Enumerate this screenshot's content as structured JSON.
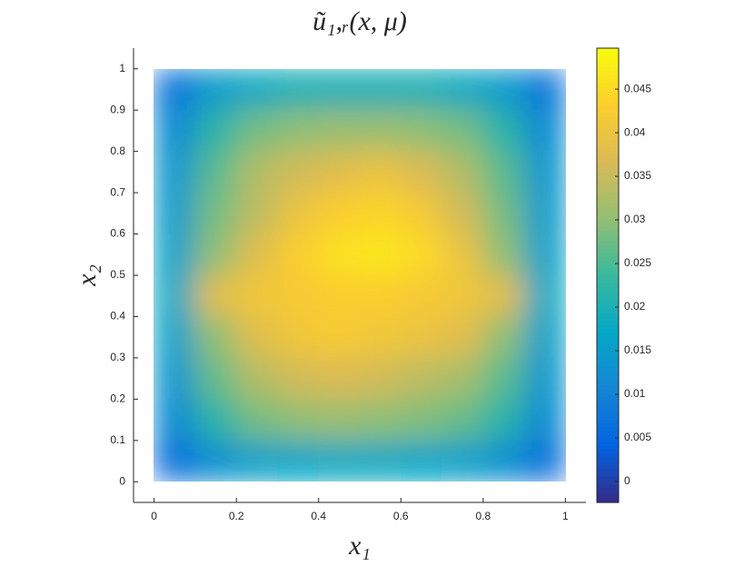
{
  "chart_data": {
    "type": "heatmap",
    "title": "ũ₁,ᵣ(x, μ)",
    "xlabel": "x₁",
    "ylabel": "x₂",
    "x": [
      0.05,
      0.15,
      0.25,
      0.35,
      0.45,
      0.55,
      0.65,
      0.75,
      0.85,
      0.95
    ],
    "y": [
      0.95,
      0.85,
      0.75,
      0.65,
      0.55,
      0.45,
      0.35,
      0.25,
      0.15,
      0.05
    ],
    "z": [
      [
        0.008,
        0.015,
        0.018,
        0.02,
        0.02,
        0.02,
        0.02,
        0.018,
        0.015,
        0.008
      ],
      [
        0.012,
        0.022,
        0.028,
        0.03,
        0.031,
        0.031,
        0.03,
        0.028,
        0.022,
        0.012
      ],
      [
        0.014,
        0.026,
        0.033,
        0.036,
        0.038,
        0.04,
        0.037,
        0.033,
        0.026,
        0.014
      ],
      [
        0.015,
        0.028,
        0.034,
        0.04,
        0.043,
        0.044,
        0.042,
        0.036,
        0.028,
        0.015
      ],
      [
        0.016,
        0.03,
        0.038,
        0.043,
        0.046,
        0.047,
        0.045,
        0.04,
        0.03,
        0.016
      ],
      [
        0.018,
        0.038,
        0.041,
        0.042,
        0.043,
        0.043,
        0.042,
        0.041,
        0.038,
        0.018
      ],
      [
        0.016,
        0.03,
        0.038,
        0.041,
        0.042,
        0.041,
        0.04,
        0.038,
        0.03,
        0.016
      ],
      [
        0.014,
        0.027,
        0.033,
        0.036,
        0.037,
        0.036,
        0.034,
        0.032,
        0.026,
        0.014
      ],
      [
        0.012,
        0.022,
        0.028,
        0.03,
        0.031,
        0.03,
        0.029,
        0.027,
        0.022,
        0.012
      ],
      [
        0.007,
        0.013,
        0.016,
        0.017,
        0.018,
        0.018,
        0.017,
        0.016,
        0.013,
        0.007
      ]
    ],
    "xlim": [
      -0.05,
      1.05
    ],
    "ylim": [
      -0.05,
      1.05
    ],
    "xticks": [
      0,
      0.2,
      0.4,
      0.6,
      0.8,
      1
    ],
    "yticks": [
      0,
      0.1,
      0.2,
      0.3,
      0.4,
      0.5,
      0.6,
      0.7,
      0.8,
      0.9,
      1
    ],
    "clim": [
      -0.0024,
      0.0497
    ],
    "cticks": [
      0,
      0.005,
      0.01,
      0.015,
      0.02,
      0.025,
      0.03,
      0.035,
      0.04,
      0.045
    ],
    "colormap": "parula"
  }
}
